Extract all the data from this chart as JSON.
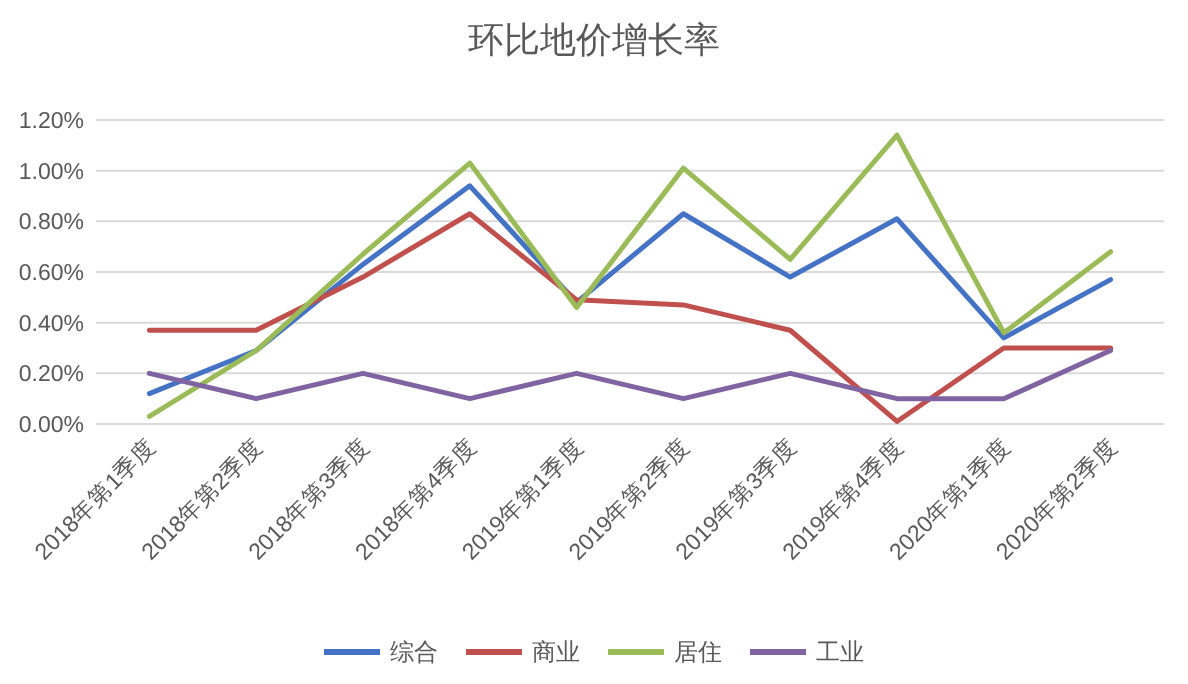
{
  "chart_data": {
    "type": "line",
    "title": "环比地价增长率",
    "categories": [
      "2018年第1季度",
      "2018年第2季度",
      "2018年第3季度",
      "2018年第4季度",
      "2019年第1季度",
      "2019年第2季度",
      "2019年第3季度",
      "2019年第4季度",
      "2020年第1季度",
      "2020年第2季度"
    ],
    "series": [
      {
        "name": "综合",
        "color": "#4472c4",
        "values": [
          0.12,
          0.29,
          0.63,
          0.94,
          0.48,
          0.83,
          0.58,
          0.81,
          0.34,
          0.57
        ]
      },
      {
        "name": "商业",
        "color": "#c0504d",
        "values": [
          0.37,
          0.37,
          0.58,
          0.83,
          0.49,
          0.47,
          0.37,
          0.01,
          0.3,
          0.3
        ]
      },
      {
        "name": "居住",
        "color": "#9bbb59",
        "values": [
          0.03,
          0.29,
          0.67,
          1.03,
          0.46,
          1.01,
          0.65,
          1.14,
          0.36,
          0.68
        ]
      },
      {
        "name": "工业",
        "color": "#8064a2",
        "values": [
          0.2,
          0.1,
          0.2,
          0.1,
          0.2,
          0.1,
          0.2,
          0.1,
          0.1,
          0.29
        ]
      }
    ],
    "ylim": [
      0,
      1.2
    ],
    "yticks": [
      {
        "value": 0,
        "label": "0.00%"
      },
      {
        "value": 0.2,
        "label": "0.20%"
      },
      {
        "value": 0.4,
        "label": "0.40%"
      },
      {
        "value": 0.6,
        "label": "0.60%"
      },
      {
        "value": 0.8,
        "label": "0.80%"
      },
      {
        "value": 1.0,
        "label": "1.00%"
      },
      {
        "value": 1.2,
        "label": "1.20%"
      }
    ],
    "grid": "y",
    "legend": "bottom"
  }
}
